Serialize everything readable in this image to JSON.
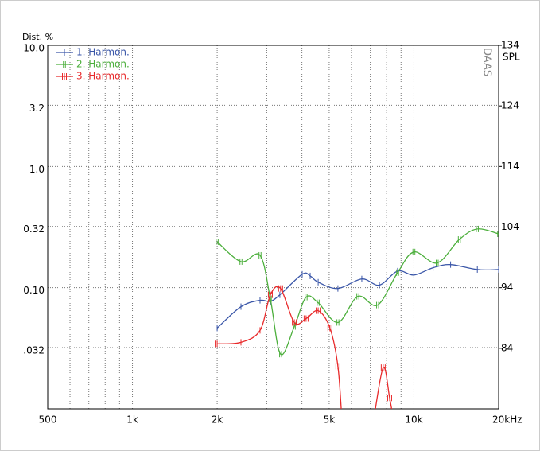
{
  "chart_data": {
    "type": "line",
    "y_label": "Dist. %",
    "y2_label": "SPL",
    "watermark": "DAAS",
    "xlog": true,
    "ylog": true,
    "grid": true,
    "legend": "upper left",
    "xlim": [
      500,
      20000
    ],
    "xticks": [
      500,
      {
        "value": 1000,
        "label": "1k"
      },
      {
        "value": 2000,
        "label": "2k"
      },
      {
        "value": 5000,
        "label": "5k"
      },
      {
        "value": 10000,
        "label": "10k"
      },
      {
        "value": 20000,
        "label": "20kHz"
      }
    ],
    "xminor_ticks": [
      600,
      700,
      800,
      900,
      3000,
      4000,
      6000,
      7000,
      8000,
      9000
    ],
    "ylim": [
      0.01,
      10
    ],
    "yticks": [
      {
        "value": 10,
        "label": "10.0"
      },
      3.2,
      {
        "value": 1,
        "label": "1.0"
      },
      0.32,
      {
        "value": 0.1,
        "label": "0.10"
      },
      {
        "value": 0.032,
        "label": ".032"
      }
    ],
    "y2lim": [
      74,
      134
    ],
    "y2ticks": [
      134,
      124,
      114,
      104,
      94,
      84
    ],
    "series": [
      {
        "name": "1. Harmon.",
        "color": "#3a56a8",
        "x": [
          2000,
          2430,
          2840,
          3090,
          3340,
          4010,
          4280,
          4570,
          5370,
          6530,
          7540,
          8750,
          10000,
          11700,
          13500,
          16800,
          20000
        ],
        "values": [
          0.0464,
          0.0697,
          0.0786,
          0.0771,
          0.0873,
          0.129,
          0.125,
          0.111,
          0.0985,
          0.118,
          0.105,
          0.137,
          0.127,
          0.146,
          0.155,
          0.141,
          0.141
        ]
      },
      {
        "name": "2. Harmon.",
        "color": "#4caf3c",
        "x": [
          2000,
          2430,
          2840,
          3090,
          3360,
          3760,
          4140,
          4570,
          5370,
          6320,
          7430,
          8750,
          10000,
          12100,
          14500,
          16800,
          20000
        ],
        "values": [
          0.239,
          0.164,
          0.185,
          0.081,
          0.0283,
          0.0478,
          0.0835,
          0.0751,
          0.0516,
          0.0848,
          0.0718,
          0.133,
          0.197,
          0.16,
          0.25,
          0.305,
          0.278
        ]
      },
      {
        "name": "3. Harmon.",
        "color": "#e8292a",
        "x": [
          2000,
          2430,
          2840,
          3090,
          3360,
          3760,
          4140,
          4570,
          5030,
          5370,
          5550,
          null,
          7190,
          7780,
          8200,
          8470
        ],
        "values": [
          0.0344,
          0.0354,
          0.0444,
          0.0873,
          0.0985,
          0.0516,
          0.0556,
          0.0646,
          0.0464,
          0.0225,
          0.008,
          null,
          0.008,
          0.0219,
          0.0123,
          0.008
        ]
      }
    ]
  }
}
